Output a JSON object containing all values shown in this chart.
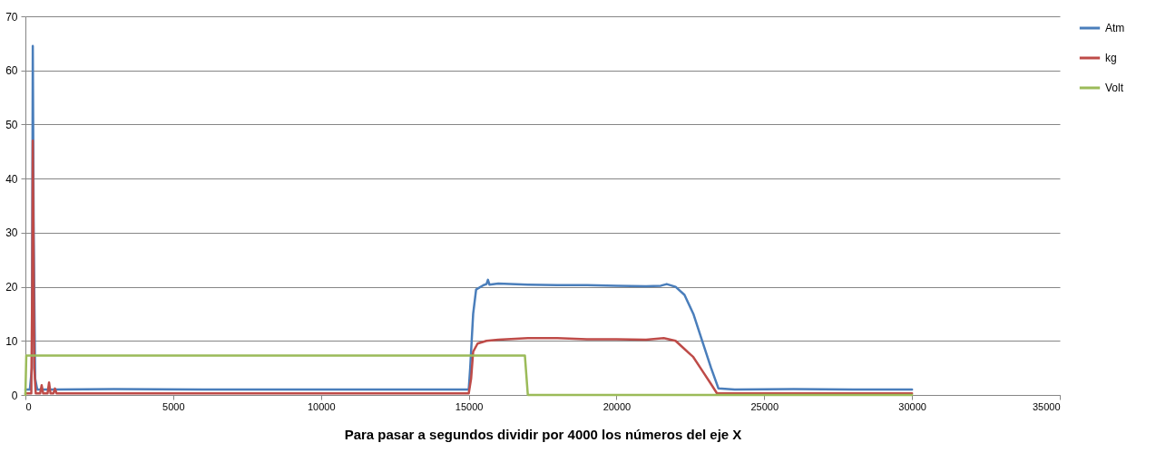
{
  "chart_data": {
    "type": "line",
    "xlabel": "Para pasar a segundos dividir por 4000 los números del eje X",
    "xlim": [
      0,
      35000
    ],
    "xticks": [
      0,
      5000,
      10000,
      15000,
      20000,
      25000,
      30000,
      35000
    ],
    "ylim": [
      0,
      70
    ],
    "yticks": [
      0,
      10,
      20,
      30,
      40,
      50,
      60,
      70
    ],
    "grid": "y",
    "legend": "right",
    "marker": "none",
    "line_style": "solid",
    "series": [
      {
        "name": "Atm",
        "color": "#4a7ebb",
        "x": [
          0,
          150,
          220,
          250,
          280,
          330,
          400,
          600,
          1000,
          3000,
          6000,
          9000,
          12000,
          15000,
          15050,
          15100,
          15150,
          15250,
          15500,
          15600,
          15650,
          15700,
          16000,
          17000,
          18000,
          19000,
          20000,
          21000,
          21500,
          21700,
          22000,
          22300,
          22600,
          22900,
          23200,
          23450,
          24000,
          26000,
          28000,
          30000
        ],
        "values": [
          1,
          1,
          5,
          64.5,
          30,
          3,
          1,
          1,
          1,
          1.1,
          1,
          1,
          1,
          1,
          5,
          10,
          15,
          19.5,
          20.3,
          20.5,
          21.3,
          20.4,
          20.6,
          20.4,
          20.3,
          20.3,
          20.2,
          20.1,
          20.2,
          20.5,
          20,
          18.5,
          15,
          10,
          5,
          1.2,
          1,
          1.1,
          1,
          1
        ]
      },
      {
        "name": "kg",
        "color": "#be4b48",
        "x": [
          0,
          200,
          230,
          250,
          270,
          300,
          350,
          500,
          550,
          600,
          750,
          800,
          850,
          950,
          1000,
          1050,
          1500,
          5000,
          10000,
          15000,
          15080,
          15150,
          15300,
          15600,
          16000,
          17000,
          18000,
          19000,
          20000,
          21000,
          21600,
          22000,
          22300,
          22600,
          22900,
          23200,
          23400,
          25000,
          30000
        ],
        "values": [
          0.3,
          0.3,
          20,
          47,
          32,
          5,
          0.3,
          0.3,
          1.8,
          0.3,
          0.3,
          2.3,
          0.3,
          0.3,
          1.2,
          0.3,
          0.3,
          0.3,
          0.3,
          0.3,
          3,
          8,
          9.5,
          10,
          10.2,
          10.5,
          10.5,
          10.3,
          10.3,
          10.2,
          10.5,
          10,
          8.5,
          7,
          4.5,
          2,
          0.3,
          0.3,
          0.3
        ]
      },
      {
        "name": "Volt",
        "color": "#9bbb59",
        "x": [
          0,
          30,
          16900,
          17000,
          30000
        ],
        "values": [
          0,
          7.3,
          7.3,
          0,
          0
        ]
      }
    ]
  }
}
